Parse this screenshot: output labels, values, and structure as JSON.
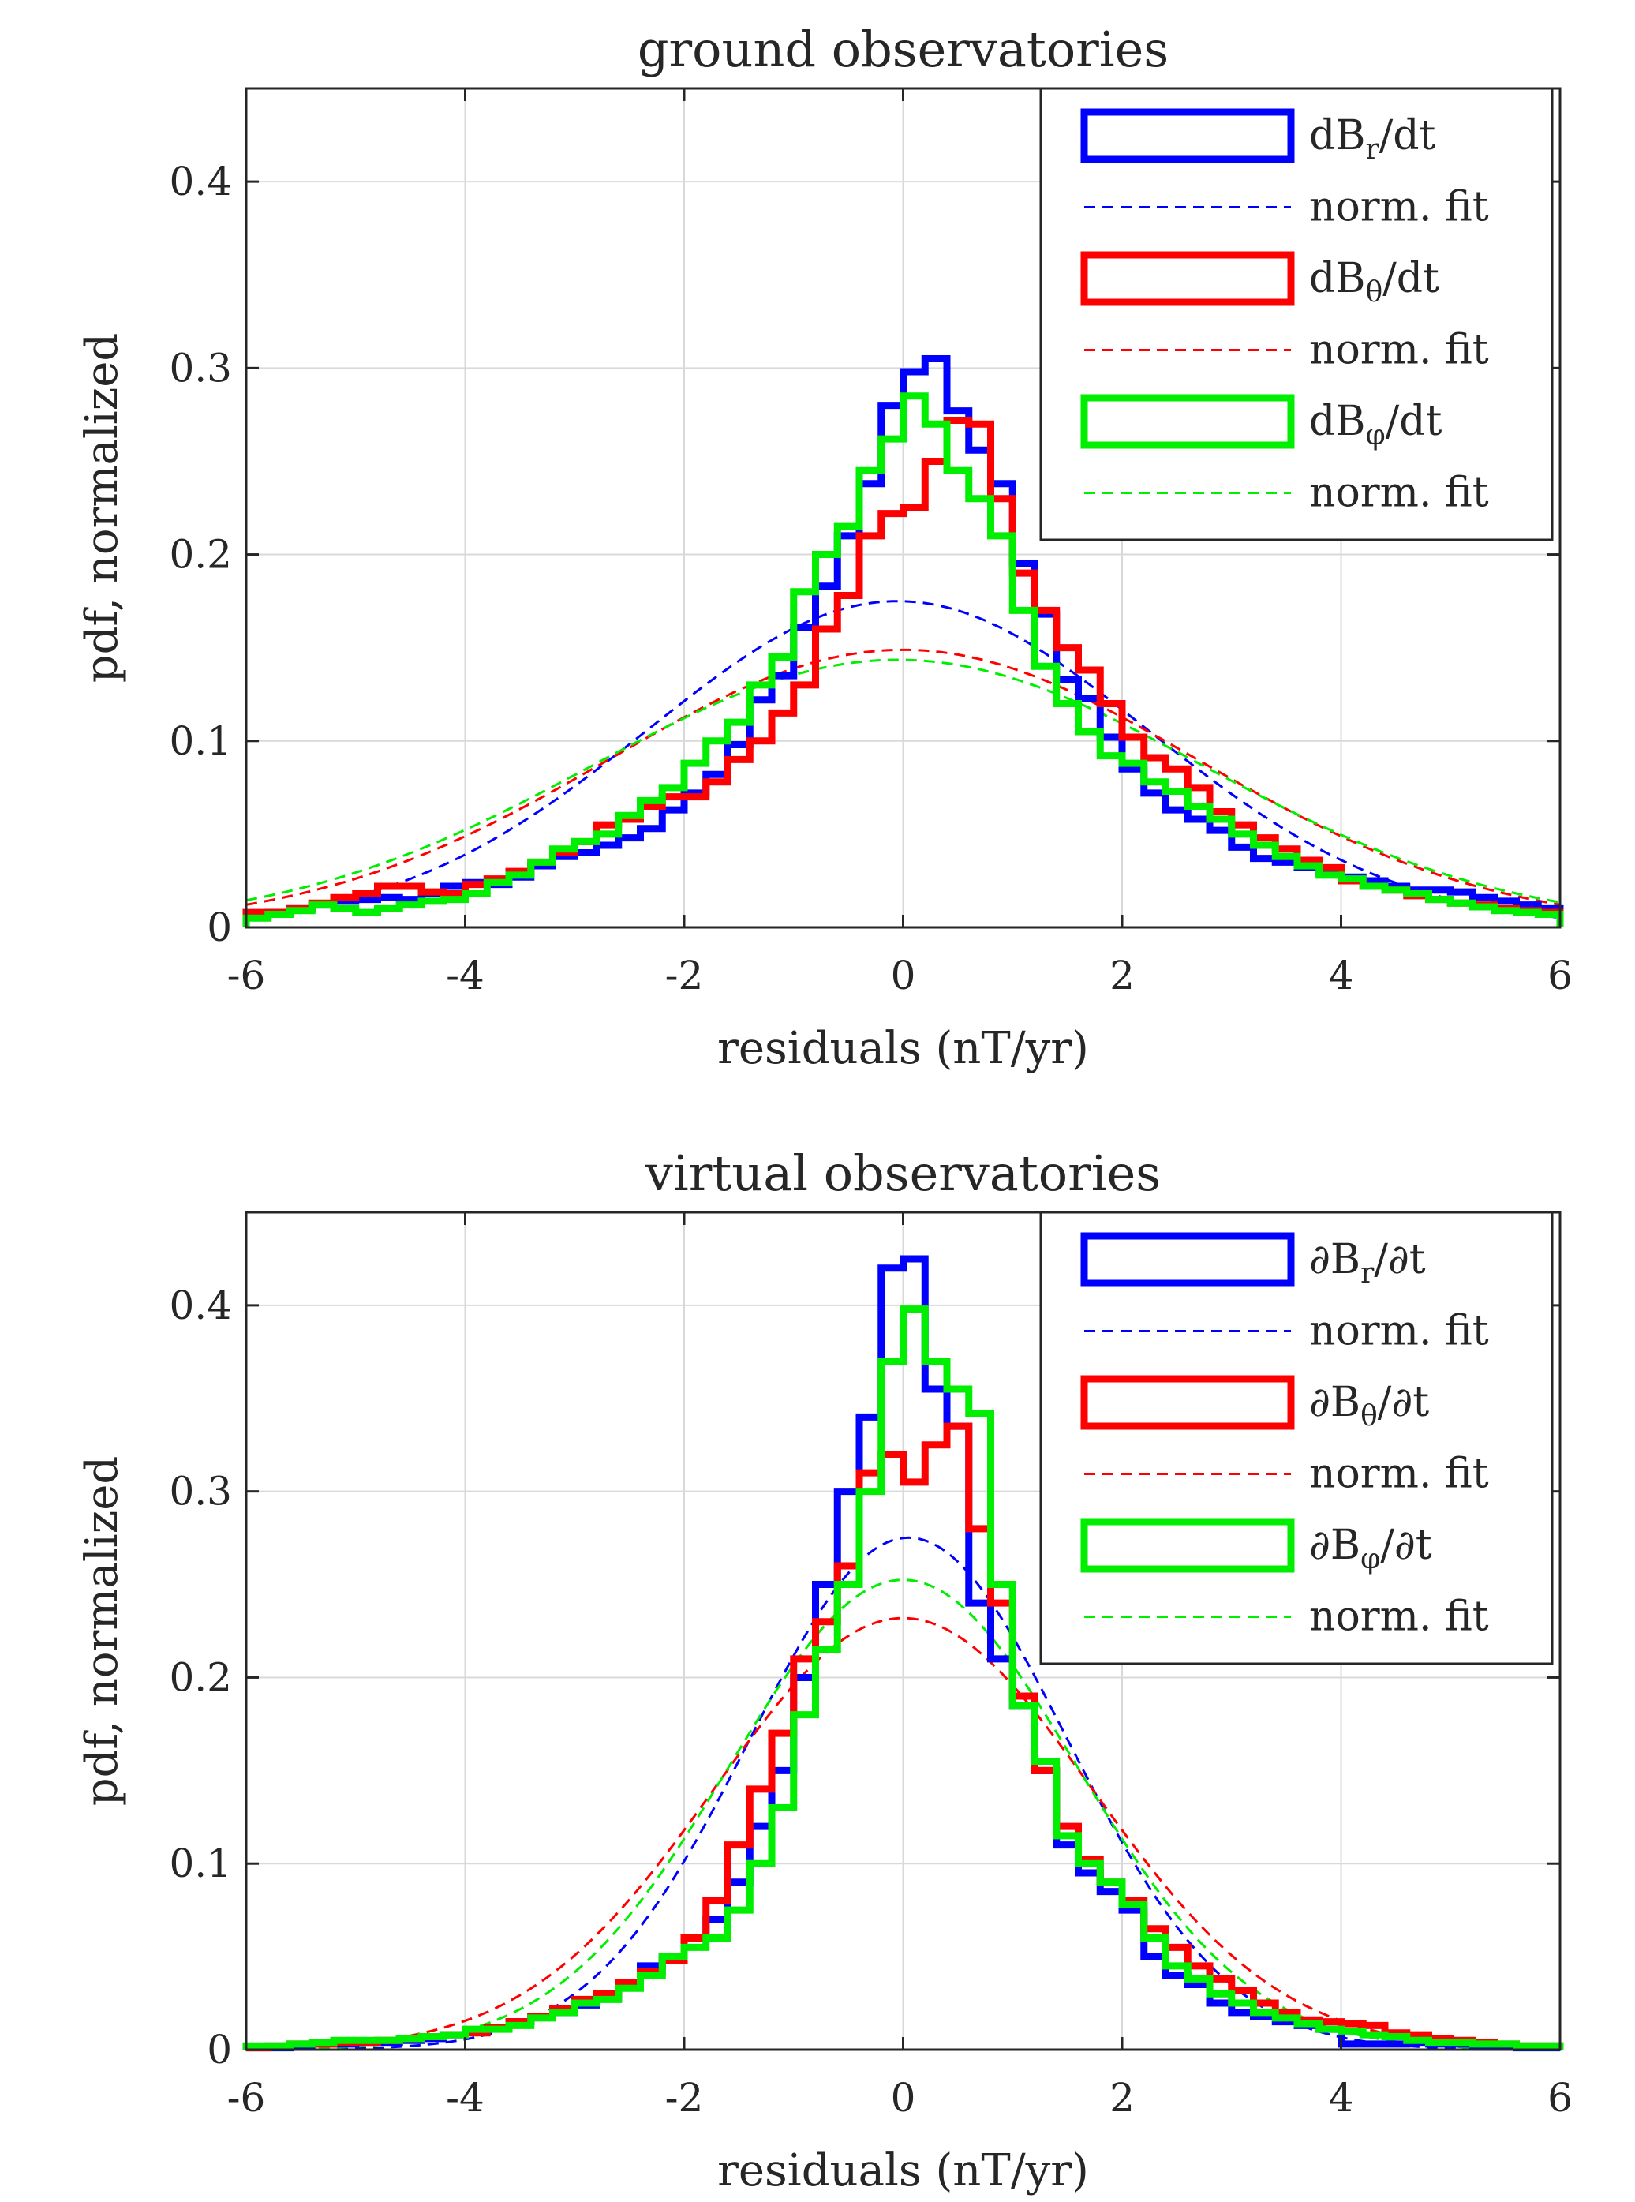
{
  "chart_data": [
    {
      "type": "line",
      "title": "ground observatories",
      "xlabel": "residuals (nT/yr)",
      "ylabel": "pdf, normalized",
      "xlim": [
        -6,
        6
      ],
      "ylim": [
        0,
        0.45
      ],
      "xticks": [
        "-6",
        "-4",
        "-2",
        "0",
        "2",
        "4",
        "6"
      ],
      "yticks": [
        "0",
        "0.1",
        "0.2",
        "0.3",
        "0.4"
      ],
      "grid": true,
      "legend_position": "top-right",
      "bin_edges": [
        -6.0,
        -5.8,
        -5.6,
        -5.4,
        -5.2,
        -5.0,
        -4.8,
        -4.6,
        -4.4,
        -4.2,
        -4.0,
        -3.8,
        -3.6,
        -3.4,
        -3.2,
        -3.0,
        -2.8,
        -2.6,
        -2.4,
        -2.2,
        -2.0,
        -1.8,
        -1.6,
        -1.4,
        -1.2,
        -1.0,
        -0.8,
        -0.6,
        -0.4,
        -0.2,
        0.0,
        0.2,
        0.4,
        0.6,
        0.8,
        1.0,
        1.2,
        1.4,
        1.6,
        1.8,
        2.0,
        2.2,
        2.4,
        2.6,
        2.8,
        3.0,
        3.2,
        3.4,
        3.6,
        3.8,
        4.0,
        4.2,
        4.4,
        4.6,
        4.8,
        5.0,
        5.2,
        5.4,
        5.6,
        5.8,
        6.0
      ],
      "series": [
        {
          "name": "dB_r/dt",
          "kind": "histogram",
          "color": "#0000ff",
          "values": [
            0.007,
            0.008,
            0.01,
            0.012,
            0.014,
            0.015,
            0.016,
            0.015,
            0.018,
            0.022,
            0.024,
            0.023,
            0.027,
            0.033,
            0.038,
            0.04,
            0.044,
            0.048,
            0.053,
            0.063,
            0.072,
            0.082,
            0.098,
            0.122,
            0.135,
            0.161,
            0.183,
            0.21,
            0.238,
            0.28,
            0.298,
            0.305,
            0.277,
            0.256,
            0.238,
            0.195,
            0.168,
            0.133,
            0.123,
            0.102,
            0.085,
            0.072,
            0.063,
            0.058,
            0.052,
            0.043,
            0.037,
            0.035,
            0.032,
            0.029,
            0.027,
            0.025,
            0.022,
            0.02,
            0.02,
            0.019,
            0.016,
            0.014,
            0.012,
            0.01
          ]
        },
        {
          "name": "dB_r/dt fit",
          "kind": "fit",
          "color": "#0000ff",
          "mu": -0.05,
          "sigma": 2.28
        },
        {
          "name": "dB_θ/dt",
          "kind": "histogram",
          "color": "#ff0000",
          "values": [
            0.008,
            0.008,
            0.01,
            0.013,
            0.016,
            0.018,
            0.022,
            0.022,
            0.019,
            0.018,
            0.023,
            0.026,
            0.03,
            0.035,
            0.04,
            0.046,
            0.055,
            0.058,
            0.065,
            0.07,
            0.07,
            0.078,
            0.09,
            0.1,
            0.115,
            0.13,
            0.16,
            0.178,
            0.21,
            0.222,
            0.225,
            0.25,
            0.272,
            0.27,
            0.23,
            0.19,
            0.17,
            0.15,
            0.138,
            0.12,
            0.102,
            0.091,
            0.085,
            0.075,
            0.062,
            0.055,
            0.048,
            0.042,
            0.036,
            0.032,
            0.025,
            0.022,
            0.02,
            0.017,
            0.015,
            0.013,
            0.012,
            0.01,
            0.009,
            0.008
          ]
        },
        {
          "name": "dB_θ/dt fit",
          "kind": "fit",
          "color": "#ff0000",
          "mu": 0.0,
          "sigma": 2.68
        },
        {
          "name": "dB_φ/dt",
          "kind": "histogram",
          "color": "#00ee00",
          "values": [
            0.005,
            0.007,
            0.009,
            0.012,
            0.01,
            0.008,
            0.01,
            0.012,
            0.014,
            0.015,
            0.018,
            0.024,
            0.028,
            0.035,
            0.042,
            0.046,
            0.05,
            0.06,
            0.068,
            0.075,
            0.088,
            0.1,
            0.11,
            0.13,
            0.145,
            0.18,
            0.2,
            0.215,
            0.245,
            0.262,
            0.285,
            0.27,
            0.245,
            0.23,
            0.21,
            0.17,
            0.14,
            0.12,
            0.105,
            0.092,
            0.088,
            0.078,
            0.073,
            0.065,
            0.058,
            0.05,
            0.044,
            0.038,
            0.033,
            0.028,
            0.026,
            0.022,
            0.02,
            0.018,
            0.015,
            0.013,
            0.011,
            0.009,
            0.008,
            0.007
          ]
        },
        {
          "name": "dB_φ/dt fit",
          "kind": "fit",
          "color": "#00ee00",
          "mu": -0.05,
          "sigma": 2.78
        }
      ],
      "legend": [
        {
          "label": "dBr/dt",
          "style": "box",
          "color": "#0000ff"
        },
        {
          "label": "norm. fit",
          "style": "dashed",
          "color": "#0000ff"
        },
        {
          "label": "dBθ/dt",
          "style": "box",
          "color": "#ff0000"
        },
        {
          "label": "norm. fit",
          "style": "dashed",
          "color": "#ff0000"
        },
        {
          "label": "dBφ/dt",
          "style": "box",
          "color": "#00ee00"
        },
        {
          "label": "norm. fit",
          "style": "dashed",
          "color": "#00ee00"
        }
      ]
    },
    {
      "type": "line",
      "title": "virtual observatories",
      "xlabel": "residuals (nT/yr)",
      "ylabel": "pdf, normalized",
      "xlim": [
        -6,
        6
      ],
      "ylim": [
        0,
        0.45
      ],
      "xticks": [
        "-6",
        "-4",
        "-2",
        "0",
        "2",
        "4",
        "6"
      ],
      "yticks": [
        "0",
        "0.1",
        "0.2",
        "0.3",
        "0.4"
      ],
      "grid": true,
      "legend_position": "top-right",
      "bin_edges": [
        -6.0,
        -5.8,
        -5.6,
        -5.4,
        -5.2,
        -5.0,
        -4.8,
        -4.6,
        -4.4,
        -4.2,
        -4.0,
        -3.8,
        -3.6,
        -3.4,
        -3.2,
        -3.0,
        -2.8,
        -2.6,
        -2.4,
        -2.2,
        -2.0,
        -1.8,
        -1.6,
        -1.4,
        -1.2,
        -1.0,
        -0.8,
        -0.6,
        -0.4,
        -0.2,
        0.0,
        0.2,
        0.4,
        0.6,
        0.8,
        1.0,
        1.2,
        1.4,
        1.6,
        1.8,
        2.0,
        2.2,
        2.4,
        2.6,
        2.8,
        3.0,
        3.2,
        3.4,
        3.6,
        3.8,
        4.0,
        4.2,
        4.4,
        4.6,
        4.8,
        5.0,
        5.2,
        5.4,
        5.6,
        5.8,
        6.0
      ],
      "series": [
        {
          "name": "∂B_r/∂t",
          "kind": "histogram",
          "color": "#0000ff",
          "values": [
            0.001,
            0.001,
            0.002,
            0.003,
            0.003,
            0.004,
            0.004,
            0.005,
            0.006,
            0.008,
            0.01,
            0.012,
            0.015,
            0.018,
            0.02,
            0.024,
            0.028,
            0.035,
            0.045,
            0.05,
            0.06,
            0.07,
            0.09,
            0.12,
            0.15,
            0.2,
            0.25,
            0.3,
            0.34,
            0.42,
            0.425,
            0.355,
            0.335,
            0.24,
            0.21,
            0.185,
            0.15,
            0.11,
            0.095,
            0.085,
            0.075,
            0.05,
            0.04,
            0.035,
            0.025,
            0.02,
            0.018,
            0.015,
            0.013,
            0.011,
            0.003,
            0.003,
            0.003,
            0.004,
            0.003,
            0.003,
            0.002,
            0.002,
            0.001,
            0.001
          ]
        },
        {
          "name": "∂B_r/∂t fit",
          "kind": "fit",
          "color": "#0000ff",
          "mu": 0.05,
          "sigma": 1.45
        },
        {
          "name": "∂B_θ/∂t",
          "kind": "histogram",
          "color": "#ff0000",
          "values": [
            0.001,
            0.002,
            0.003,
            0.003,
            0.004,
            0.004,
            0.005,
            0.006,
            0.007,
            0.008,
            0.009,
            0.012,
            0.015,
            0.018,
            0.022,
            0.027,
            0.03,
            0.036,
            0.042,
            0.048,
            0.06,
            0.08,
            0.11,
            0.14,
            0.17,
            0.21,
            0.23,
            0.26,
            0.31,
            0.32,
            0.305,
            0.325,
            0.335,
            0.28,
            0.24,
            0.19,
            0.15,
            0.12,
            0.102,
            0.09,
            0.08,
            0.065,
            0.055,
            0.045,
            0.038,
            0.032,
            0.025,
            0.02,
            0.016,
            0.015,
            0.014,
            0.013,
            0.009,
            0.008,
            0.006,
            0.005,
            0.004,
            0.003,
            0.002,
            0.002
          ]
        },
        {
          "name": "∂B_θ/∂t fit",
          "kind": "fit",
          "color": "#ff0000",
          "mu": 0.0,
          "sigma": 1.72
        },
        {
          "name": "∂B_φ/∂t",
          "kind": "histogram",
          "color": "#00ee00",
          "values": [
            0.002,
            0.002,
            0.003,
            0.004,
            0.005,
            0.005,
            0.005,
            0.006,
            0.007,
            0.008,
            0.011,
            0.011,
            0.013,
            0.017,
            0.02,
            0.025,
            0.027,
            0.033,
            0.04,
            0.05,
            0.055,
            0.06,
            0.075,
            0.1,
            0.13,
            0.18,
            0.215,
            0.25,
            0.3,
            0.37,
            0.398,
            0.37,
            0.355,
            0.342,
            0.25,
            0.185,
            0.155,
            0.115,
            0.1,
            0.09,
            0.078,
            0.06,
            0.045,
            0.038,
            0.03,
            0.025,
            0.02,
            0.017,
            0.014,
            0.011,
            0.01,
            0.008,
            0.007,
            0.005,
            0.004,
            0.004,
            0.003,
            0.003,
            0.002,
            0.002
          ]
        },
        {
          "name": "∂B_φ/∂t fit",
          "kind": "fit",
          "color": "#00ee00",
          "mu": 0.0,
          "sigma": 1.58
        }
      ],
      "legend": [
        {
          "label": "∂Br/∂t",
          "style": "box",
          "color": "#0000ff"
        },
        {
          "label": "norm. fit",
          "style": "dashed",
          "color": "#0000ff"
        },
        {
          "label": "∂Bθ/∂t",
          "style": "box",
          "color": "#ff0000"
        },
        {
          "label": "norm. fit",
          "style": "dashed",
          "color": "#ff0000"
        },
        {
          "label": "∂Bφ/∂t",
          "style": "box",
          "color": "#00ee00"
        },
        {
          "label": "norm. fit",
          "style": "dashed",
          "color": "#00ee00"
        }
      ]
    }
  ]
}
